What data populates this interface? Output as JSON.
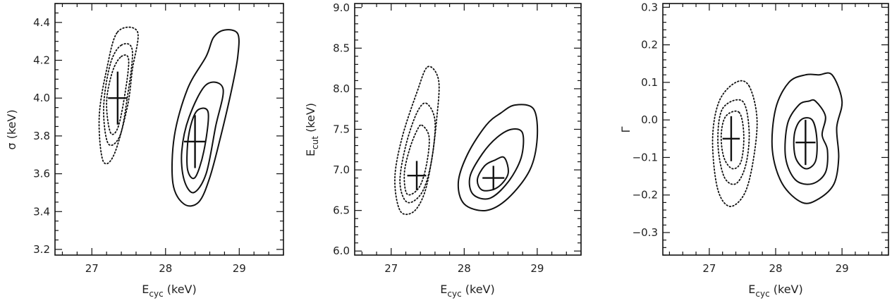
{
  "chart_data": [
    {
      "type": "contour",
      "xlabel": "E",
      "xlabel_sub": "cyc",
      "xlabel_unit": " (keV)",
      "ylabel": "σ",
      "ylabel_sub": "",
      "ylabel_unit": " (keV)",
      "xlim": [
        26.5,
        29.6
      ],
      "ylim": [
        3.17,
        4.5
      ],
      "xticks": [
        {
          "v": 27,
          "label": "27"
        },
        {
          "v": 28,
          "label": "28"
        },
        {
          "v": 29,
          "label": "29"
        }
      ],
      "yticks": [
        {
          "v": 3.2,
          "label": "3.2"
        },
        {
          "v": 3.4,
          "label": "3.4"
        },
        {
          "v": 3.6,
          "label": "3.6"
        },
        {
          "v": 3.8,
          "label": "3.8"
        },
        {
          "v": 4.0,
          "label": "4.0"
        },
        {
          "v": 4.2,
          "label": "4.2"
        },
        {
          "v": 4.4,
          "label": "4.4"
        }
      ],
      "yminor": 4,
      "best_fits": [
        {
          "x": 27.35,
          "y": 4.0,
          "xerr": 0.13,
          "yerr": 0.14
        },
        {
          "x": 28.4,
          "y": 3.77,
          "xerr": 0.15,
          "yerr": 0.14
        }
      ],
      "contours": [
        {
          "style": "dotted",
          "cx": 27.35,
          "cy": 4.0,
          "points": [
            [
              27.35,
              4.35
            ],
            [
              27.62,
              4.35
            ],
            [
              27.55,
              4.15
            ],
            [
              27.48,
              3.95
            ],
            [
              27.3,
              3.7
            ],
            [
              27.15,
              3.67
            ],
            [
              27.1,
              3.9
            ],
            [
              27.2,
              4.15
            ]
          ]
        },
        {
          "style": "dotted",
          "cx": 27.35,
          "cy": 4.0,
          "points": [
            [
              27.4,
              4.28
            ],
            [
              27.55,
              4.25
            ],
            [
              27.48,
              4.0
            ],
            [
              27.38,
              3.8
            ],
            [
              27.22,
              3.76
            ],
            [
              27.16,
              3.95
            ],
            [
              27.25,
              4.18
            ]
          ]
        },
        {
          "style": "dotted",
          "cx": 27.35,
          "cy": 4.0,
          "points": [
            [
              27.4,
              4.22
            ],
            [
              27.5,
              4.2
            ],
            [
              27.44,
              4.0
            ],
            [
              27.35,
              3.84
            ],
            [
              27.25,
              3.82
            ],
            [
              27.2,
              3.98
            ],
            [
              27.28,
              4.14
            ]
          ]
        },
        {
          "style": "solid",
          "cx": 28.4,
          "cy": 3.77,
          "points": [
            [
              28.8,
              4.36
            ],
            [
              28.98,
              4.34
            ],
            [
              28.98,
              4.22
            ],
            [
              28.9,
              4.05
            ],
            [
              28.75,
              3.8
            ],
            [
              28.6,
              3.58
            ],
            [
              28.45,
              3.45
            ],
            [
              28.25,
              3.44
            ],
            [
              28.1,
              3.55
            ],
            [
              28.12,
              3.8
            ],
            [
              28.3,
              4.05
            ],
            [
              28.55,
              4.22
            ],
            [
              28.65,
              4.32
            ]
          ]
        },
        {
          "style": "solid",
          "cx": 28.4,
          "cy": 3.77,
          "points": [
            [
              28.55,
              4.07
            ],
            [
              28.78,
              4.05
            ],
            [
              28.68,
              3.85
            ],
            [
              28.55,
              3.6
            ],
            [
              28.38,
              3.5
            ],
            [
              28.25,
              3.57
            ],
            [
              28.22,
              3.72
            ],
            [
              28.32,
              3.9
            ]
          ]
        },
        {
          "style": "solid",
          "cx": 28.4,
          "cy": 3.77,
          "points": [
            [
              28.45,
              3.94
            ],
            [
              28.58,
              3.92
            ],
            [
              28.52,
              3.72
            ],
            [
              28.4,
              3.58
            ],
            [
              28.3,
              3.62
            ],
            [
              28.3,
              3.76
            ],
            [
              28.36,
              3.88
            ]
          ]
        }
      ]
    },
    {
      "type": "contour",
      "xlabel": "E",
      "xlabel_sub": "cyc",
      "xlabel_unit": " (keV)",
      "ylabel": "E",
      "ylabel_sub": "cut",
      "ylabel_unit": " (keV)",
      "xlim": [
        26.5,
        29.6
      ],
      "ylim": [
        5.95,
        9.05
      ],
      "xticks": [
        {
          "v": 27,
          "label": "27"
        },
        {
          "v": 28,
          "label": "28"
        },
        {
          "v": 29,
          "label": "29"
        }
      ],
      "yticks": [
        {
          "v": 6.0,
          "label": "6.0"
        },
        {
          "v": 6.5,
          "label": "6.5"
        },
        {
          "v": 7.0,
          "label": "7.0"
        },
        {
          "v": 7.5,
          "label": "7.5"
        },
        {
          "v": 8.0,
          "label": "8.0"
        },
        {
          "v": 8.5,
          "label": "8.5"
        },
        {
          "v": 9.0,
          "label": "9.0"
        }
      ],
      "yminor": 5,
      "best_fits": [
        {
          "x": 27.35,
          "y": 6.93,
          "xerr": 0.13,
          "yerr": 0.18
        },
        {
          "x": 28.4,
          "y": 6.9,
          "xerr": 0.15,
          "yerr": 0.15
        }
      ],
      "contours": [
        {
          "style": "dotted",
          "cx": 27.35,
          "cy": 6.93,
          "points": [
            [
              27.5,
              8.27
            ],
            [
              27.65,
              8.1
            ],
            [
              27.62,
              7.6
            ],
            [
              27.55,
              7.1
            ],
            [
              27.45,
              6.7
            ],
            [
              27.3,
              6.48
            ],
            [
              27.12,
              6.5
            ],
            [
              27.05,
              6.9
            ],
            [
              27.15,
              7.4
            ],
            [
              27.35,
              7.95
            ]
          ]
        },
        {
          "style": "dotted",
          "cx": 27.35,
          "cy": 6.93,
          "points": [
            [
              27.48,
              7.82
            ],
            [
              27.6,
              7.6
            ],
            [
              27.55,
              7.1
            ],
            [
              27.42,
              6.72
            ],
            [
              27.22,
              6.6
            ],
            [
              27.12,
              6.85
            ],
            [
              27.2,
              7.3
            ],
            [
              27.35,
              7.7
            ]
          ]
        },
        {
          "style": "dotted",
          "cx": 27.35,
          "cy": 6.93,
          "points": [
            [
              27.42,
              7.55
            ],
            [
              27.52,
              7.4
            ],
            [
              27.48,
              7.05
            ],
            [
              27.38,
              6.78
            ],
            [
              27.22,
              6.7
            ],
            [
              27.18,
              6.95
            ],
            [
              27.25,
              7.25
            ],
            [
              27.35,
              7.48
            ]
          ]
        },
        {
          "style": "solid",
          "cx": 28.4,
          "cy": 6.9,
          "points": [
            [
              28.7,
              7.8
            ],
            [
              28.95,
              7.75
            ],
            [
              29.0,
              7.4
            ],
            [
              28.9,
              7.0
            ],
            [
              28.6,
              6.65
            ],
            [
              28.3,
              6.5
            ],
            [
              28.0,
              6.58
            ],
            [
              27.92,
              6.85
            ],
            [
              28.05,
              7.2
            ],
            [
              28.3,
              7.55
            ],
            [
              28.5,
              7.7
            ]
          ]
        },
        {
          "style": "solid",
          "cx": 28.4,
          "cy": 6.9,
          "points": [
            [
              28.65,
              7.5
            ],
            [
              28.8,
              7.45
            ],
            [
              28.78,
              7.15
            ],
            [
              28.6,
              6.85
            ],
            [
              28.35,
              6.65
            ],
            [
              28.12,
              6.7
            ],
            [
              28.08,
              6.92
            ],
            [
              28.25,
              7.2
            ],
            [
              28.45,
              7.4
            ]
          ]
        },
        {
          "style": "solid",
          "cx": 28.4,
          "cy": 6.9,
          "points": [
            [
              28.55,
              7.15
            ],
            [
              28.6,
              6.95
            ],
            [
              28.45,
              6.78
            ],
            [
              28.25,
              6.75
            ],
            [
              28.18,
              6.88
            ],
            [
              28.28,
              7.05
            ],
            [
              28.42,
              7.12
            ]
          ]
        }
      ]
    },
    {
      "type": "contour",
      "xlabel": "E",
      "xlabel_sub": "cyc",
      "xlabel_unit": " (keV)",
      "ylabel": "Γ",
      "ylabel_sub": "",
      "ylabel_unit": "",
      "xlim": [
        26.3,
        29.7
      ],
      "ylim": [
        -0.36,
        0.31
      ],
      "xticks": [
        {
          "v": 27,
          "label": "27"
        },
        {
          "v": 28,
          "label": "28"
        },
        {
          "v": 29,
          "label": "29"
        }
      ],
      "yticks": [
        {
          "v": -0.3,
          "label": "−0.3"
        },
        {
          "v": -0.2,
          "label": "−0.2"
        },
        {
          "v": -0.1,
          "label": "−0.1"
        },
        {
          "v": 0.0,
          "label": "0.0"
        },
        {
          "v": 0.1,
          "label": "0.1"
        },
        {
          "v": 0.2,
          "label": "0.2"
        },
        {
          "v": 0.3,
          "label": "0.3"
        }
      ],
      "yminor": 5,
      "best_fits": [
        {
          "x": 27.33,
          "y": -0.05,
          "xerr": 0.13,
          "yerr": 0.06
        },
        {
          "x": 28.45,
          "y": -0.06,
          "xerr": 0.15,
          "yerr": 0.06
        }
      ],
      "contours": [
        {
          "style": "dotted",
          "cx": 27.33,
          "cy": -0.05,
          "points": [
            [
              27.6,
              0.09
            ],
            [
              27.72,
              0.0
            ],
            [
              27.65,
              -0.12
            ],
            [
              27.52,
              -0.2
            ],
            [
              27.3,
              -0.23
            ],
            [
              27.12,
              -0.18
            ],
            [
              27.05,
              -0.05
            ],
            [
              27.15,
              0.05
            ],
            [
              27.4,
              0.1
            ]
          ]
        },
        {
          "style": "dotted",
          "cx": 27.33,
          "cy": -0.05,
          "points": [
            [
              27.5,
              0.05
            ],
            [
              27.6,
              -0.03
            ],
            [
              27.55,
              -0.12
            ],
            [
              27.4,
              -0.17
            ],
            [
              27.22,
              -0.15
            ],
            [
              27.13,
              -0.06
            ],
            [
              27.2,
              0.03
            ]
          ]
        },
        {
          "style": "dotted",
          "cx": 27.33,
          "cy": -0.05,
          "points": [
            [
              27.45,
              0.02
            ],
            [
              27.52,
              -0.04
            ],
            [
              27.48,
              -0.11
            ],
            [
              27.35,
              -0.13
            ],
            [
              27.22,
              -0.1
            ],
            [
              27.18,
              -0.04
            ],
            [
              27.25,
              0.01
            ]
          ]
        },
        {
          "style": "solid",
          "cx": 28.45,
          "cy": -0.06,
          "points": [
            [
              28.65,
              0.12
            ],
            [
              28.85,
              0.12
            ],
            [
              29.0,
              0.05
            ],
            [
              28.92,
              -0.02
            ],
            [
              28.95,
              -0.1
            ],
            [
              28.88,
              -0.17
            ],
            [
              28.65,
              -0.21
            ],
            [
              28.4,
              -0.22
            ],
            [
              28.1,
              -0.17
            ],
            [
              27.95,
              -0.08
            ],
            [
              28.0,
              0.03
            ],
            [
              28.2,
              0.1
            ],
            [
              28.45,
              0.12
            ]
          ]
        },
        {
          "style": "solid",
          "cx": 28.45,
          "cy": -0.06,
          "points": [
            [
              28.6,
              0.05
            ],
            [
              28.75,
              0.01
            ],
            [
              28.7,
              -0.04
            ],
            [
              28.78,
              -0.08
            ],
            [
              28.75,
              -0.14
            ],
            [
              28.55,
              -0.17
            ],
            [
              28.3,
              -0.16
            ],
            [
              28.15,
              -0.1
            ],
            [
              28.18,
              -0.01
            ],
            [
              28.35,
              0.04
            ],
            [
              28.5,
              0.05
            ]
          ]
        },
        {
          "style": "solid",
          "cx": 28.45,
          "cy": -0.06,
          "points": [
            [
              28.55,
              0.0
            ],
            [
              28.62,
              -0.05
            ],
            [
              28.6,
              -0.11
            ],
            [
              28.45,
              -0.13
            ],
            [
              28.3,
              -0.1
            ],
            [
              28.28,
              -0.04
            ],
            [
              28.38,
              0.0
            ]
          ]
        }
      ]
    }
  ]
}
